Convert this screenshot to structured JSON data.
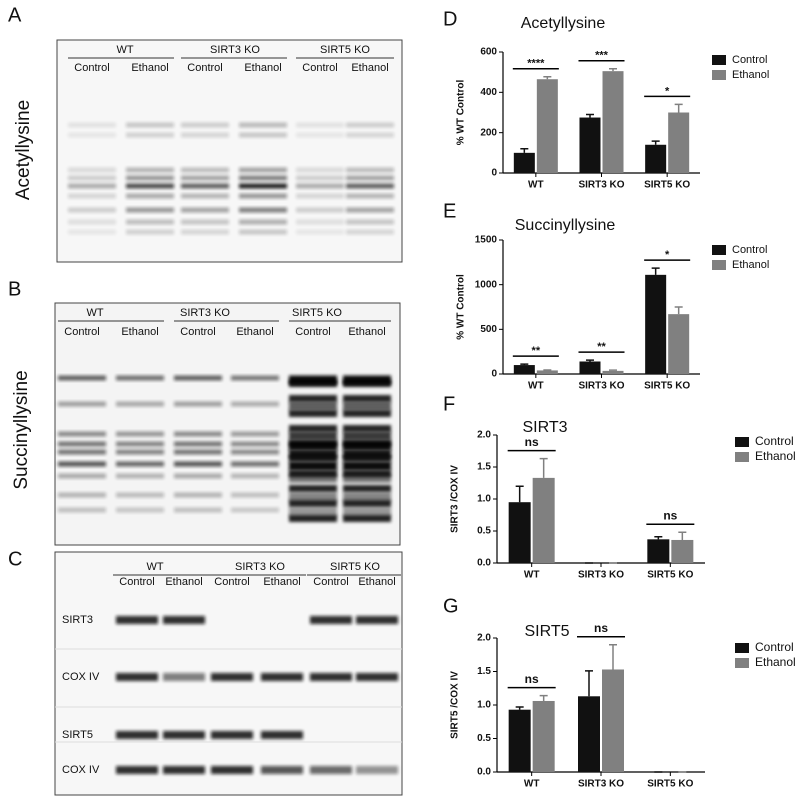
{
  "blots": [
    {
      "panel": "A",
      "label": "Acetyllysine",
      "groups": [
        "WT",
        "SIRT3 KO",
        "SIRT5 KO"
      ],
      "lanes": [
        "Control",
        "Ethanol",
        "Control",
        "Ethanol",
        "Control",
        "Ethanol"
      ]
    },
    {
      "panel": "B",
      "label": "Succinyllysine",
      "groups": [
        "WT",
        "SIRT3 KO",
        "SIRT5 KO"
      ],
      "lanes": [
        "Control",
        "Ethanol",
        "Control",
        "Ethanol",
        "Control",
        "Ethanol"
      ]
    },
    {
      "panel": "C",
      "groups": [
        "WT",
        "SIRT3 KO",
        "SIRT5 KO"
      ],
      "lanes": [
        "Control",
        "Ethanol",
        "Control",
        "Ethanol",
        "Control",
        "Ethanol"
      ],
      "rows": [
        "SIRT3",
        "COX IV",
        "SIRT5",
        "COX IV"
      ]
    }
  ],
  "chart_data": [
    {
      "type": "bar",
      "panel": "D",
      "title": "Acetyllysine",
      "ylabel": "% WT Control",
      "categories": [
        "WT",
        "SIRT3 KO",
        "SIRT5 KO"
      ],
      "series": [
        {
          "name": "Control",
          "color": "#111111",
          "values": [
            100,
            275,
            140
          ],
          "errors": [
            20,
            15,
            18
          ]
        },
        {
          "name": "Ethanol",
          "color": "#808080",
          "values": [
            465,
            505,
            300
          ],
          "errors": [
            12,
            12,
            40
          ]
        }
      ],
      "significance": [
        "****",
        "***",
        "*"
      ],
      "ylim": [
        0,
        600
      ],
      "yticks": [
        0,
        200,
        400,
        600
      ]
    },
    {
      "type": "bar",
      "panel": "E",
      "title": "Succinyllysine",
      "ylabel": "% WT Control",
      "categories": [
        "WT",
        "SIRT3 KO",
        "SIRT5 KO"
      ],
      "series": [
        {
          "name": "Control",
          "color": "#111111",
          "values": [
            100,
            140,
            1110
          ],
          "errors": [
            10,
            15,
            75
          ]
        },
        {
          "name": "Ethanol",
          "color": "#808080",
          "values": [
            40,
            35,
            670
          ],
          "errors": [
            5,
            8,
            80
          ]
        }
      ],
      "significance": [
        "**",
        "**",
        "*"
      ],
      "ylim": [
        0,
        1500
      ],
      "yticks": [
        0,
        500,
        1000,
        1500
      ]
    },
    {
      "type": "bar",
      "panel": "F",
      "title": "SIRT3",
      "ylabel": "SIRT3 /COX IV",
      "categories": [
        "WT",
        "SIRT3 KO",
        "SIRT5 KO"
      ],
      "series": [
        {
          "name": "Control",
          "color": "#111111",
          "values": [
            0.95,
            0,
            0.37
          ],
          "errors": [
            0.25,
            0,
            0.04
          ]
        },
        {
          "name": "Ethanol",
          "color": "#808080",
          "values": [
            1.33,
            0,
            0.36
          ],
          "errors": [
            0.3,
            0,
            0.12
          ]
        }
      ],
      "significance": [
        "ns",
        null,
        "ns"
      ],
      "ylim": [
        0,
        2
      ],
      "yticks": [
        {
          "value": 0,
          "label": "0.0"
        },
        0.5,
        {
          "value": 1,
          "label": "1.0"
        },
        1.5,
        {
          "value": 2,
          "label": "2.0"
        }
      ]
    },
    {
      "type": "bar",
      "panel": "G",
      "title": "SIRT5",
      "ylabel": "SIRT5 /COX IV",
      "categories": [
        "WT",
        "SIRT3 KO",
        "SIRT5 KO"
      ],
      "series": [
        {
          "name": "Control",
          "color": "#111111",
          "values": [
            0.93,
            1.13,
            0
          ],
          "errors": [
            0.04,
            0.38,
            0
          ]
        },
        {
          "name": "Ethanol",
          "color": "#808080",
          "values": [
            1.06,
            1.53,
            0
          ],
          "errors": [
            0.08,
            0.37,
            0
          ]
        }
      ],
      "significance": [
        "ns",
        "ns",
        null
      ],
      "ylim": [
        0,
        2
      ],
      "yticks": [
        {
          "value": 0,
          "label": "0.0"
        },
        0.5,
        {
          "value": 1,
          "label": "1.0"
        },
        1.5,
        {
          "value": 2,
          "label": "2.0"
        }
      ]
    }
  ]
}
